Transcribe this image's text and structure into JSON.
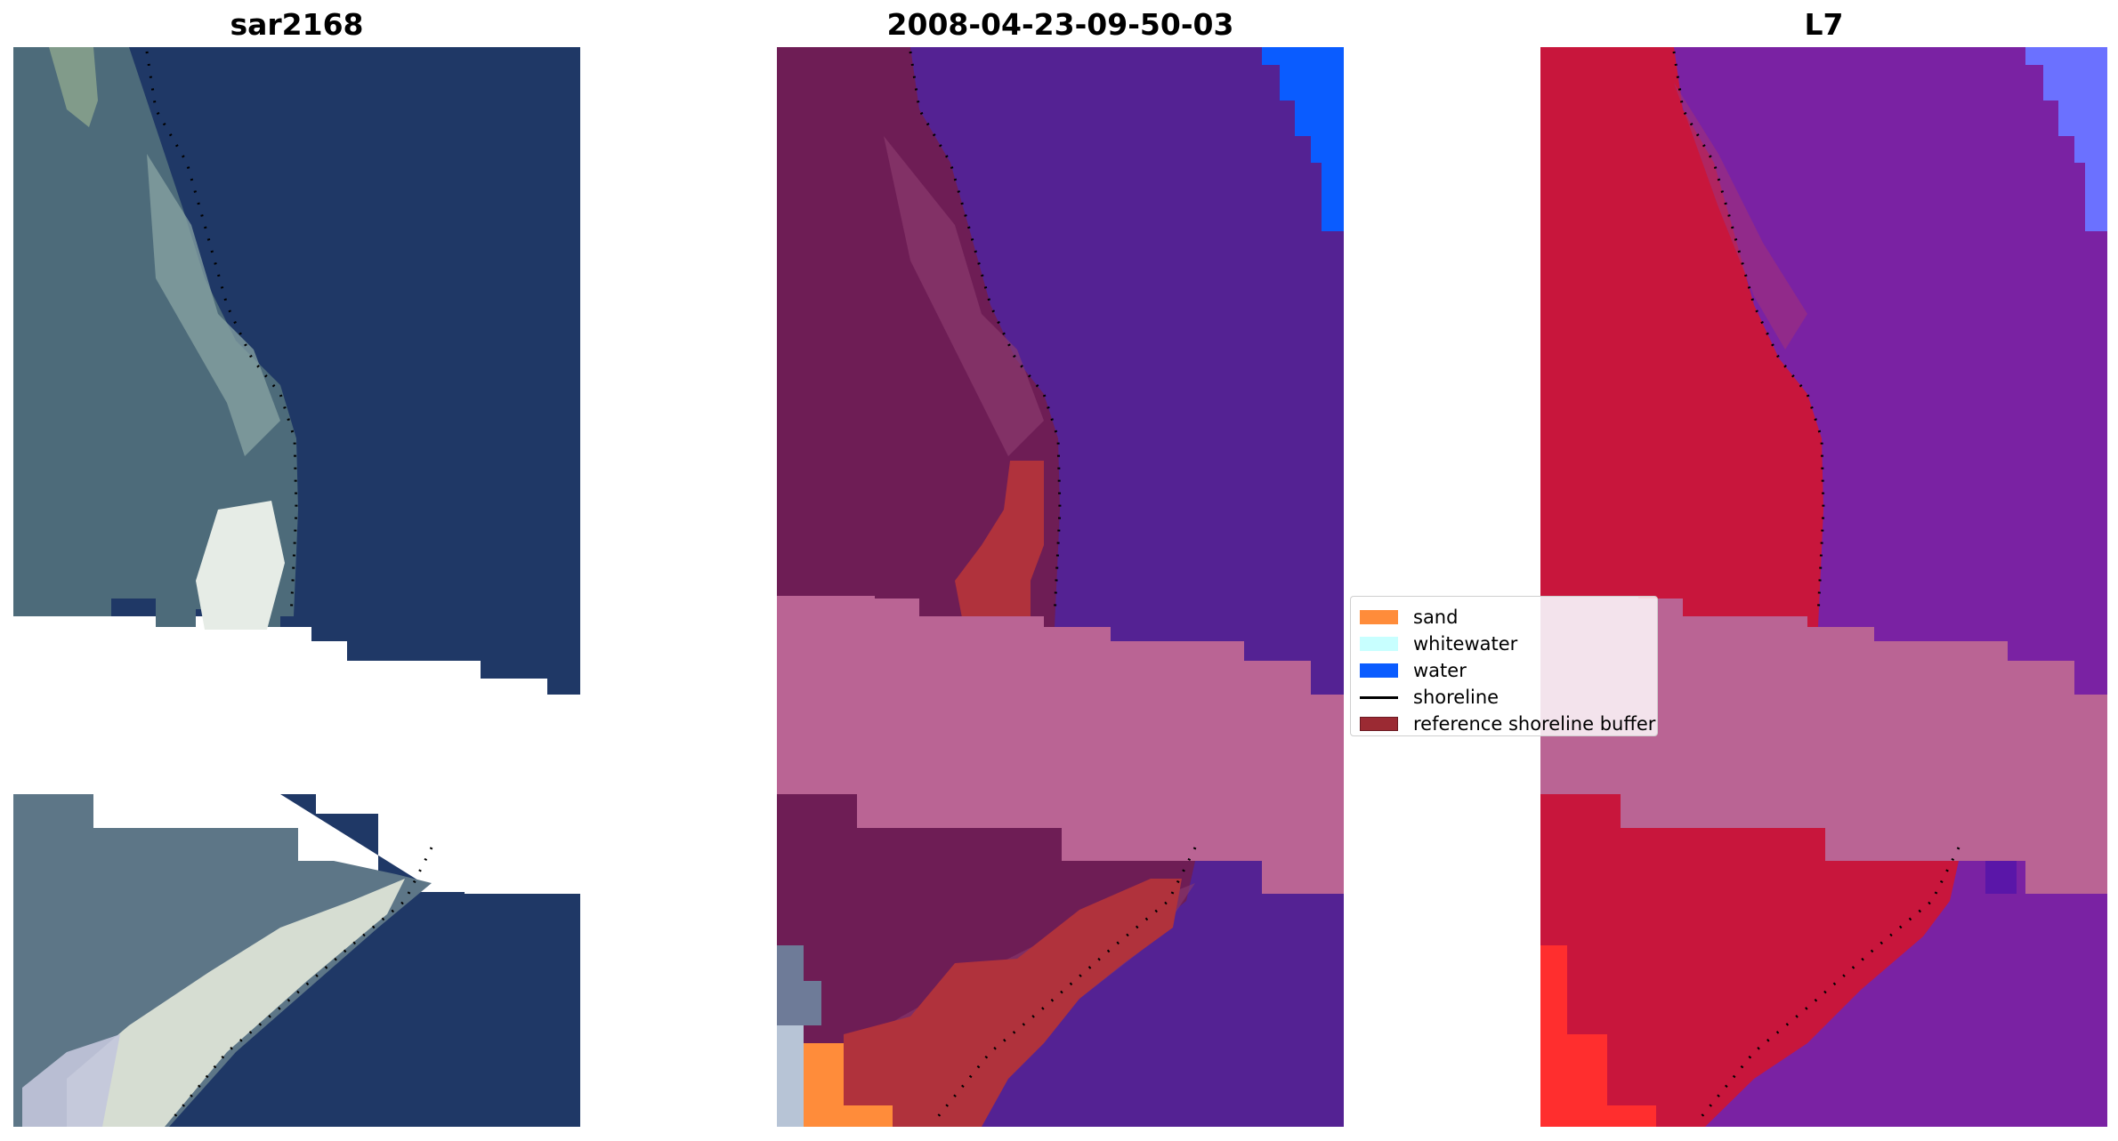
{
  "panels": [
    {
      "title": "sar2168",
      "image": "satellite-rgb-true-color"
    },
    {
      "title": "2008-04-23-09-50-03",
      "image": "classified-image-overlay"
    },
    {
      "title": "L7",
      "image": "false-color-mndwi"
    }
  ],
  "legend": {
    "items": [
      {
        "label": "sand",
        "color": "#ff8c3a",
        "kind": "patch"
      },
      {
        "label": "whitewater",
        "color": "#c8ffff",
        "kind": "patch"
      },
      {
        "label": "water",
        "color": "#0a5cff",
        "kind": "patch"
      },
      {
        "label": "shoreline",
        "color": "#000000",
        "kind": "line"
      },
      {
        "label": "reference shoreline buffer",
        "color": "#9b2a33",
        "kind": "patch"
      }
    ]
  },
  "colors": {
    "sea_rgb": "#1f3866",
    "land_rgb": "#4d6b7a",
    "sand_rgb": "#e8eee4",
    "sea_class": "#542293",
    "land_class": "#6e1d55",
    "buffer_band": "#ba6494",
    "buffer_class": "#b0323c",
    "water_class": "#0a5cff",
    "land_l7": "#c8163c",
    "sea_l7": "#7a22a3",
    "water_l7": "#6b71ff",
    "sand_l7": "#ff2e2e"
  }
}
